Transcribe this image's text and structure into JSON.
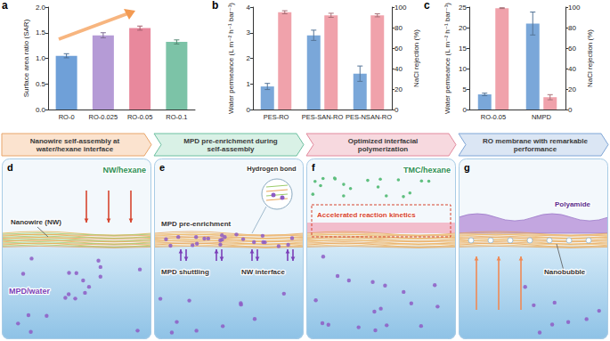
{
  "chart_data": [
    {
      "panel": "a",
      "type": "bar",
      "categories": [
        "RO-0",
        "RO-0.025",
        "RO-0.05",
        "RO-0.1"
      ],
      "values": [
        1.05,
        1.45,
        1.59,
        1.32
      ],
      "errors": [
        0.04,
        0.05,
        0.04,
        0.04
      ],
      "colors": [
        "#6fa0d8",
        "#b59bd6",
        "#e8889c",
        "#7cc3a7"
      ],
      "y_label": "Surface area ratio (SAR)",
      "ylim": [
        0,
        2
      ],
      "yticks": [
        {
          "value": 0,
          "label": "0.0"
        },
        0.5,
        {
          "value": 1,
          "label": "1.0"
        },
        1.5,
        {
          "value": 2,
          "label": "2.0"
        }
      ]
    },
    {
      "panel": "b",
      "type": "bar",
      "categories": [
        "PES-RO",
        "PES-SAN-RO",
        "PES-NSAN-RO"
      ],
      "series": [
        {
          "color": "#7aa7d9",
          "values": [
            0.9,
            2.9,
            1.4
          ],
          "errors": [
            0.12,
            0.2,
            0.3
          ]
        },
        {
          "color": "#f0a2ab",
          "axis": "y2",
          "values": [
            95,
            92,
            92
          ],
          "errors": [
            1.5,
            2,
            1.5
          ]
        }
      ],
      "y_label": "Water permeance (L m⁻² h⁻¹ bar⁻¹)",
      "y2_label": "NaCl rejection (%)",
      "ylim": [
        0,
        4
      ],
      "yticks": [
        0,
        1,
        2,
        3,
        4
      ],
      "y2lim": [
        0,
        100
      ],
      "y2ticks": [
        0,
        20,
        40,
        60,
        80,
        100
      ]
    },
    {
      "panel": "c",
      "type": "bar",
      "categories": [
        "RO-0.05",
        "NMPD"
      ],
      "series": [
        {
          "color": "#7aa7d9",
          "values": [
            3.7,
            21
          ],
          "errors": [
            0.3,
            2.8
          ]
        },
        {
          "color": "#f0a2ab",
          "axis": "y2",
          "values": [
            99,
            12
          ],
          "errors": [
            0.4,
            2.5
          ]
        }
      ],
      "y_label": "Water permeance (L m⁻² h⁻¹ bar⁻¹)",
      "y2_label": "NaCl rejection (%)",
      "ylim": [
        0,
        25
      ],
      "yticks": [
        0,
        5,
        10,
        15,
        20,
        25
      ],
      "y2lim": [
        0,
        100
      ],
      "y2ticks": [
        0,
        20,
        40,
        60,
        80,
        100
      ]
    }
  ],
  "schematic": {
    "steps": [
      {
        "panel": "d",
        "banner": "Nanowire self-assembly at water/hexane interface",
        "top_phase": "NW/hexane",
        "interface": "Nanowire (NW)",
        "bottom_phase": "MPD/water"
      },
      {
        "panel": "e",
        "banner": "MPD pre-enrichment during self-assembly",
        "inset": "Hydrogen bond",
        "interface": "MPD pre-enrichment",
        "lower_left": "MPD shuttling",
        "lower_right": "NW interface"
      },
      {
        "panel": "f",
        "banner": "Optimized interfacial polymerization",
        "top_phase": "TMC/hexane",
        "interface": "Accelerated reaction kinetics"
      },
      {
        "panel": "g",
        "banner": "RO membrane with remarkable performance",
        "interface": "Polyamide",
        "lower_right": "Nanobubble"
      }
    ]
  }
}
